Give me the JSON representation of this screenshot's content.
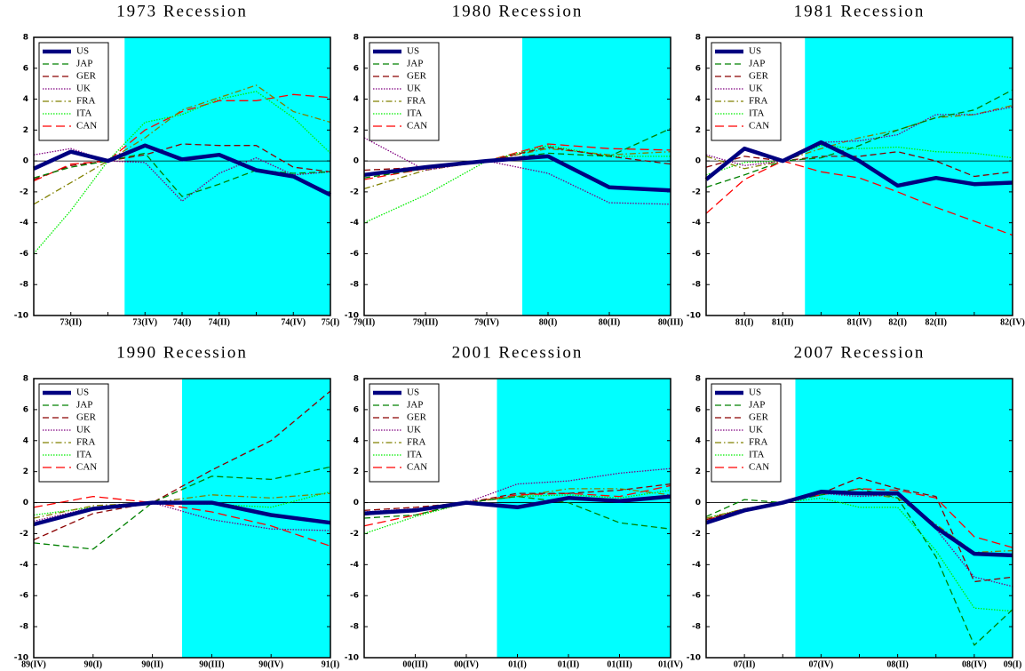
{
  "chart_data": [
    {
      "type": "line",
      "title": "1973 Recession",
      "categories": [
        null,
        "73(II)",
        null,
        "73(IV)",
        "74(I)",
        "74(II)",
        null,
        "74(IV)",
        "75(I)"
      ],
      "ylim": [
        -10,
        8
      ],
      "yticks": [
        -10,
        -8,
        -6,
        -4,
        -2,
        0,
        2,
        4,
        6,
        8
      ],
      "shade_start": 2.45,
      "shade_color": "#00ffff",
      "series": [
        {
          "name": "US",
          "color": "#000080",
          "style": "thick",
          "values": [
            -0.5,
            0.6,
            0,
            1.0,
            0.1,
            0.4,
            -0.6,
            -1.0,
            -2.2
          ]
        },
        {
          "name": "JAP",
          "color": "#008000",
          "style": "dash",
          "values": [
            -1.1,
            -0.4,
            0,
            0.5,
            -2.3,
            -1.5,
            -0.6,
            -0.8,
            -0.7
          ]
        },
        {
          "name": "GER",
          "color": "#8b0000",
          "style": "dash",
          "values": [
            -1.2,
            -0.3,
            0,
            0.4,
            1.1,
            1.0,
            1.0,
            -0.4,
            -0.7
          ]
        },
        {
          "name": "UK",
          "color": "#800080",
          "style": "dotted",
          "values": [
            0.4,
            0.8,
            0,
            -0.1,
            -2.6,
            -0.8,
            0.2,
            -0.9,
            -0.7
          ]
        },
        {
          "name": "FRA",
          "color": "#808000",
          "style": "dash-dot",
          "values": [
            -2.8,
            -1.4,
            0,
            1.5,
            3.3,
            4.1,
            4.9,
            3.2,
            2.5
          ]
        },
        {
          "name": "ITA",
          "color": "#00ee00",
          "style": "dotted",
          "values": [
            -6.0,
            -3.2,
            0,
            2.5,
            3.0,
            4.0,
            4.5,
            2.8,
            0.5
          ]
        },
        {
          "name": "CAN",
          "color": "#ff0000",
          "style": "long-dash",
          "values": [
            -1.3,
            -0.2,
            0,
            2.0,
            3.2,
            3.9,
            3.9,
            4.3,
            4.1
          ]
        }
      ]
    },
    {
      "type": "line",
      "title": "1980 Recession",
      "categories": [
        "79(II)",
        "79(III)",
        "79(IV)",
        "80(I)",
        "80(II)",
        "80(III)"
      ],
      "ylim": [
        -10,
        8
      ],
      "yticks": [
        -10,
        -8,
        -6,
        -4,
        -2,
        0,
        2,
        4,
        6,
        8
      ],
      "shade_start": 2.58,
      "shade_color": "#00ffff",
      "series": [
        {
          "name": "US",
          "color": "#000080",
          "style": "thick",
          "values": [
            -0.9,
            -0.4,
            0,
            0.3,
            -1.7,
            -1.9
          ]
        },
        {
          "name": "JAP",
          "color": "#008000",
          "style": "dash",
          "values": [
            -1.1,
            -0.5,
            0,
            0.5,
            0.3,
            2.1
          ]
        },
        {
          "name": "GER",
          "color": "#8b0000",
          "style": "dash",
          "values": [
            -0.6,
            -0.4,
            0,
            0.9,
            0.3,
            -0.2
          ]
        },
        {
          "name": "UK",
          "color": "#800080",
          "style": "dotted",
          "values": [
            1.5,
            -0.6,
            0,
            -0.8,
            -2.7,
            -2.8
          ]
        },
        {
          "name": "FRA",
          "color": "#808000",
          "style": "dash-dot",
          "values": [
            -1.8,
            -0.6,
            0,
            0.8,
            0.4,
            0.6
          ]
        },
        {
          "name": "ITA",
          "color": "#00ee00",
          "style": "dotted",
          "values": [
            -4.0,
            -2.2,
            0,
            1.0,
            0.3,
            0.3
          ]
        },
        {
          "name": "CAN",
          "color": "#ff0000",
          "style": "long-dash",
          "values": [
            -1.2,
            -0.5,
            0,
            1.1,
            0.8,
            0.7
          ]
        }
      ]
    },
    {
      "type": "line",
      "title": "1981 Recession",
      "categories": [
        null,
        "81(I)",
        "81(II)",
        null,
        "81(IV)",
        "82(I)",
        "82(II)",
        null,
        "82(IV)"
      ],
      "ylim": [
        -10,
        8
      ],
      "yticks": [
        -10,
        -8,
        -6,
        -4,
        -2,
        0,
        2,
        4,
        6,
        8
      ],
      "shade_start": 2.58,
      "shade_color": "#00ffff",
      "series": [
        {
          "name": "US",
          "color": "#000080",
          "style": "thick",
          "values": [
            -1.2,
            0.8,
            0,
            1.2,
            0,
            -1.6,
            -1.1,
            -1.5,
            -1.4
          ]
        },
        {
          "name": "JAP",
          "color": "#008000",
          "style": "dash",
          "values": [
            -1.7,
            -0.9,
            0,
            0.2,
            1.0,
            2.0,
            2.8,
            3.3,
            4.6
          ]
        },
        {
          "name": "GER",
          "color": "#8b0000",
          "style": "dash",
          "values": [
            -0.4,
            0.3,
            0,
            0.3,
            0.3,
            0.6,
            0,
            -1.0,
            -0.7
          ]
        },
        {
          "name": "UK",
          "color": "#800080",
          "style": "dotted",
          "values": [
            0.4,
            -0.3,
            0,
            1.2,
            1.3,
            1.7,
            3.0,
            3.0,
            3.5
          ]
        },
        {
          "name": "FRA",
          "color": "#808000",
          "style": "dash-dot",
          "values": [
            0.3,
            -0.5,
            0,
            0.8,
            1.5,
            2.0,
            2.8,
            3.0,
            3.6
          ]
        },
        {
          "name": "ITA",
          "color": "#00ee00",
          "style": "dotted",
          "values": [
            -0.9,
            -0.1,
            0,
            1.0,
            0.8,
            0.9,
            0.6,
            0.5,
            0.2
          ]
        },
        {
          "name": "CAN",
          "color": "#ff0000",
          "style": "long-dash",
          "values": [
            -3.4,
            -1.2,
            0,
            -0.7,
            -1.1,
            -2.0,
            -3.0,
            -3.9,
            -4.8
          ]
        }
      ]
    },
    {
      "type": "line",
      "title": "1990 Recession",
      "categories": [
        "89(IV)",
        "90(I)",
        "90(II)",
        "90(III)",
        "90(IV)",
        "91(I)"
      ],
      "ylim": [
        -10,
        8
      ],
      "yticks": [
        -10,
        -8,
        -6,
        -4,
        -2,
        0,
        2,
        4,
        6,
        8
      ],
      "shade_start": 2.5,
      "shade_color": "#00ffff",
      "series": [
        {
          "name": "US",
          "color": "#000080",
          "style": "thick",
          "values": [
            -1.4,
            -0.4,
            0,
            0,
            -0.8,
            -1.3
          ]
        },
        {
          "name": "JAP",
          "color": "#008000",
          "style": "dash",
          "values": [
            -2.6,
            -3.0,
            0,
            1.7,
            1.5,
            2.3
          ]
        },
        {
          "name": "GER",
          "color": "#8b0000",
          "style": "dash",
          "values": [
            -2.4,
            -0.7,
            0,
            2.1,
            4.0,
            7.2
          ]
        },
        {
          "name": "UK",
          "color": "#800080",
          "style": "dotted",
          "values": [
            -1.2,
            -0.3,
            0,
            -1.1,
            -1.7,
            -1.8
          ]
        },
        {
          "name": "FRA",
          "color": "#808000",
          "style": "dash-dot",
          "values": [
            -1.0,
            -0.2,
            0,
            0.5,
            0.3,
            0.6
          ]
        },
        {
          "name": "ITA",
          "color": "#00ee00",
          "style": "dotted",
          "values": [
            -0.8,
            -0.3,
            0,
            -0.1,
            -0.3,
            0.7
          ]
        },
        {
          "name": "CAN",
          "color": "#ff0000",
          "style": "long-dash",
          "values": [
            -0.3,
            0.4,
            0,
            -0.6,
            -1.5,
            -2.8
          ]
        }
      ]
    },
    {
      "type": "line",
      "title": "2001 Recession",
      "categories": [
        null,
        "00(III)",
        "00(IV)",
        "01(I)",
        "01(II)",
        "01(III)",
        "01(IV)"
      ],
      "ylim": [
        -10,
        8
      ],
      "yticks": [
        -10,
        -8,
        -6,
        -4,
        -2,
        0,
        2,
        4,
        6,
        8
      ],
      "shade_start": 2.6,
      "shade_color": "#00ffff",
      "series": [
        {
          "name": "US",
          "color": "#000080",
          "style": "thick",
          "values": [
            -0.7,
            -0.5,
            0,
            -0.3,
            0.3,
            0.1,
            0.4
          ]
        },
        {
          "name": "JAP",
          "color": "#008000",
          "style": "dash",
          "values": [
            -1.0,
            -0.8,
            0,
            0.4,
            0,
            -1.3,
            -1.7
          ]
        },
        {
          "name": "GER",
          "color": "#8b0000",
          "style": "dash",
          "values": [
            -0.5,
            -0.3,
            0,
            0.6,
            0.6,
            0.8,
            1.2
          ]
        },
        {
          "name": "UK",
          "color": "#800080",
          "style": "dotted",
          "values": [
            -0.6,
            -0.4,
            0,
            1.2,
            1.4,
            1.9,
            2.2
          ]
        },
        {
          "name": "FRA",
          "color": "#808000",
          "style": "dash-dot",
          "values": [
            -0.8,
            -0.5,
            0,
            0.4,
            0.9,
            0.9,
            0.5
          ]
        },
        {
          "name": "ITA",
          "color": "#00ee00",
          "style": "dotted",
          "values": [
            -2.0,
            -0.9,
            0,
            0.4,
            0.5,
            0.3,
            0.8
          ]
        },
        {
          "name": "CAN",
          "color": "#ff0000",
          "style": "long-dash",
          "values": [
            -1.5,
            -0.8,
            0,
            0.5,
            0.6,
            0.4,
            1.1
          ]
        }
      ]
    },
    {
      "type": "line",
      "title": "2007 Recession",
      "categories": [
        null,
        "07(II)",
        null,
        "07(IV)",
        null,
        "08(II)",
        null,
        "08(IV)",
        "09(I)"
      ],
      "ylim": [
        -10,
        8
      ],
      "yticks": [
        -10,
        -8,
        -6,
        -4,
        -2,
        0,
        2,
        4,
        6,
        8
      ],
      "shade_start": 2.33,
      "shade_color": "#00ffff",
      "series": [
        {
          "name": "US",
          "color": "#000080",
          "style": "thick",
          "values": [
            -1.3,
            -0.5,
            0,
            0.7,
            0.6,
            0.6,
            -1.6,
            -3.3,
            -3.4
          ]
        },
        {
          "name": "JAP",
          "color": "#008000",
          "style": "dash",
          "values": [
            -0.9,
            0.2,
            0,
            0.5,
            0.9,
            0.3,
            -3.5,
            -9.2,
            -6.9
          ]
        },
        {
          "name": "GER",
          "color": "#8b0000",
          "style": "dash",
          "values": [
            -1.1,
            -0.4,
            0,
            0.6,
            1.6,
            0.9,
            0.4,
            -5.1,
            -4.8
          ]
        },
        {
          "name": "UK",
          "color": "#800080",
          "style": "dotted",
          "values": [
            -1.2,
            -0.5,
            0,
            0.6,
            0.4,
            0.5,
            -1.7,
            -4.8,
            -5.4
          ]
        },
        {
          "name": "FRA",
          "color": "#808000",
          "style": "dash-dot",
          "values": [
            -1.0,
            -0.4,
            0,
            0.6,
            0.6,
            0.3,
            -1.4,
            -3.2,
            -3.1
          ]
        },
        {
          "name": "ITA",
          "color": "#00ee00",
          "style": "dotted",
          "values": [
            -1.0,
            -0.4,
            0,
            0.3,
            -0.3,
            -0.3,
            -3.1,
            -6.8,
            -7.0
          ]
        },
        {
          "name": "CAN",
          "color": "#ff0000",
          "style": "long-dash",
          "values": [
            -1.1,
            -0.5,
            0,
            0.5,
            0.9,
            0.8,
            0.3,
            -2.2,
            -2.9
          ]
        }
      ]
    }
  ]
}
